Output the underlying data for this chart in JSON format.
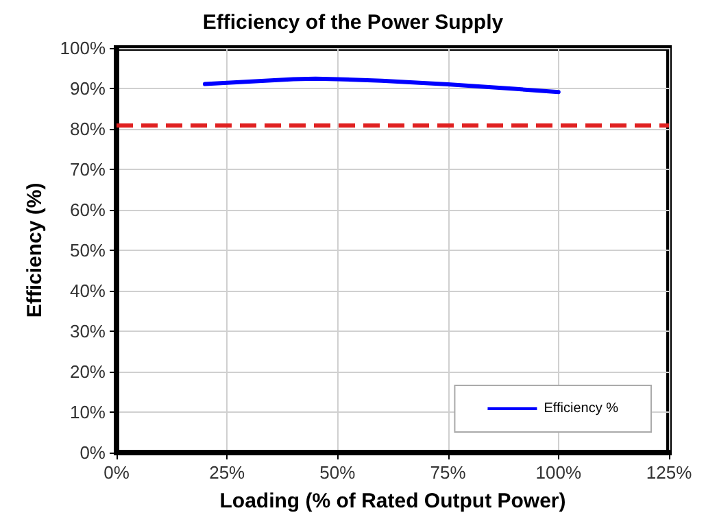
{
  "chart_data": {
    "type": "line",
    "title": "Efficiency of the Power Supply",
    "xlabel": "Loading (% of Rated Output Power)",
    "ylabel": "Efficiency (%)",
    "x": [
      20,
      30,
      40,
      45,
      50,
      60,
      75,
      90,
      100
    ],
    "series": [
      {
        "name": "Efficiency %",
        "color": "#0000ff",
        "values": [
          91.1,
          91.7,
          92.3,
          92.4,
          92.3,
          91.9,
          91.0,
          89.9,
          89.1
        ]
      }
    ],
    "xlim": [
      0,
      125
    ],
    "xticks": [
      {
        "value": 0,
        "label": "0%"
      },
      {
        "value": 25,
        "label": "25%"
      },
      {
        "value": 50,
        "label": "50%"
      },
      {
        "value": 75,
        "label": "75%"
      },
      {
        "value": 100,
        "label": "100%"
      },
      {
        "value": 125,
        "label": "125%"
      }
    ],
    "ylim": [
      0,
      100
    ],
    "yticks": [
      {
        "value": 0,
        "label": "0%"
      },
      {
        "value": 10,
        "label": "10%"
      },
      {
        "value": 20,
        "label": "20%"
      },
      {
        "value": 30,
        "label": "30%"
      },
      {
        "value": 40,
        "label": "40%"
      },
      {
        "value": 50,
        "label": "50%"
      },
      {
        "value": 60,
        "label": "60%"
      },
      {
        "value": 70,
        "label": "70%"
      },
      {
        "value": 80,
        "label": "80%"
      },
      {
        "value": 90,
        "label": "90%"
      },
      {
        "value": 100,
        "label": "100%"
      }
    ],
    "ref_lines": [
      {
        "axis": "y",
        "value": 81,
        "color": "#e02020",
        "line_style": "dashed"
      }
    ],
    "grid": true,
    "legend": "bottom right",
    "marker": "none",
    "line_style": "solid"
  }
}
